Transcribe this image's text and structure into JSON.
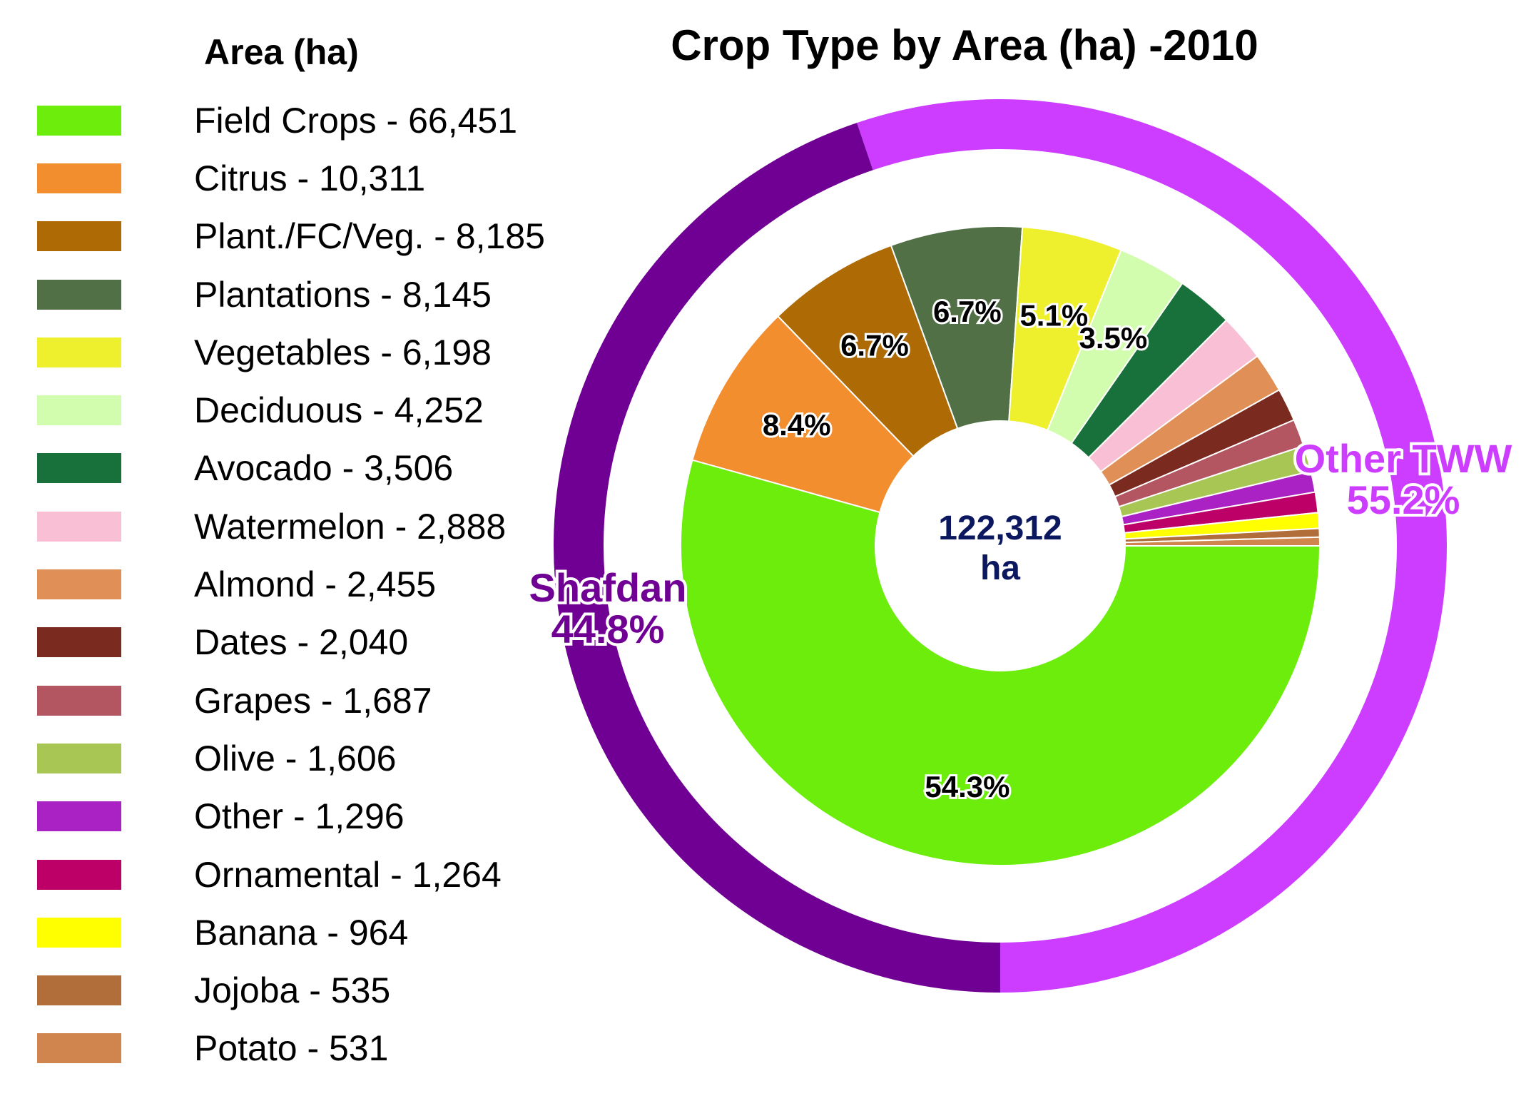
{
  "chart_data": {
    "type": "pie",
    "title": "Crop Type by Area (ha) -2010",
    "legend_title": "Area (ha)",
    "legend_position": "left",
    "center_label": [
      "122,312",
      "ha"
    ],
    "inner_series": {
      "name": "Area (ha)",
      "slices": [
        {
          "label": "Field Crops",
          "display": "Field Crops - 66,451",
          "value": 66451,
          "color": "#6ded0c",
          "pct_label": "54.3%"
        },
        {
          "label": "Citrus",
          "display": "Citrus - 10,311",
          "value": 10311,
          "color": "#f28e2e",
          "pct_label": "8.4%"
        },
        {
          "label": "Plant./FC/Veg.",
          "display": "Plant./FC/Veg. - 8,185",
          "value": 8185,
          "color": "#ad6a05",
          "pct_label": "6.7%"
        },
        {
          "label": "Plantations",
          "display": "Plantations - 8,145",
          "value": 8145,
          "color": "#527046",
          "pct_label": "6.7%"
        },
        {
          "label": "Vegetables",
          "display": "Vegetables - 6,198",
          "value": 6198,
          "color": "#eef02e",
          "pct_label": "5.1%"
        },
        {
          "label": "Deciduous",
          "display": "Deciduous - 4,252",
          "value": 4252,
          "color": "#d2fcae",
          "pct_label": "3.5%"
        },
        {
          "label": "Avocado",
          "display": "Avocado - 3,506",
          "value": 3506,
          "color": "#18703a",
          "pct_label": ""
        },
        {
          "label": "Watermelon",
          "display": "Watermelon - 2,888",
          "value": 2888,
          "color": "#f9bfd4",
          "pct_label": ""
        },
        {
          "label": "Almond",
          "display": "Almond - 2,455",
          "value": 2455,
          "color": "#e08f57",
          "pct_label": ""
        },
        {
          "label": "Dates",
          "display": "Dates - 2,040",
          "value": 2040,
          "color": "#7a2a1e",
          "pct_label": ""
        },
        {
          "label": "Grapes",
          "display": "Grapes - 1,687",
          "value": 1687,
          "color": "#b45662",
          "pct_label": ""
        },
        {
          "label": "Olive",
          "display": "Olive - 1,606",
          "value": 1606,
          "color": "#a8c653",
          "pct_label": ""
        },
        {
          "label": "Other",
          "display": "Other - 1,296",
          "value": 1296,
          "color": "#aa22c4",
          "pct_label": ""
        },
        {
          "label": "Ornamental",
          "display": "Ornamental - 1,264",
          "value": 1264,
          "color": "#bc0068",
          "pct_label": ""
        },
        {
          "label": "Banana",
          "display": "Banana - 964",
          "value": 964,
          "color": "#ffff00",
          "pct_label": ""
        },
        {
          "label": "Jojoba",
          "display": "Jojoba - 535",
          "value": 535,
          "color": "#b26e3a",
          "pct_label": ""
        },
        {
          "label": "Potato",
          "display": "Potato - 531",
          "value": 531,
          "color": "#d0854f",
          "pct_label": ""
        }
      ]
    },
    "outer_series": {
      "slices": [
        {
          "label": "Other TWW",
          "value": 55.2,
          "pct_label": "55.2%",
          "color": "#cc3dff"
        },
        {
          "label": "Shafdan",
          "value": 44.8,
          "pct_label": "44.8%",
          "color": "#700094"
        }
      ]
    }
  }
}
